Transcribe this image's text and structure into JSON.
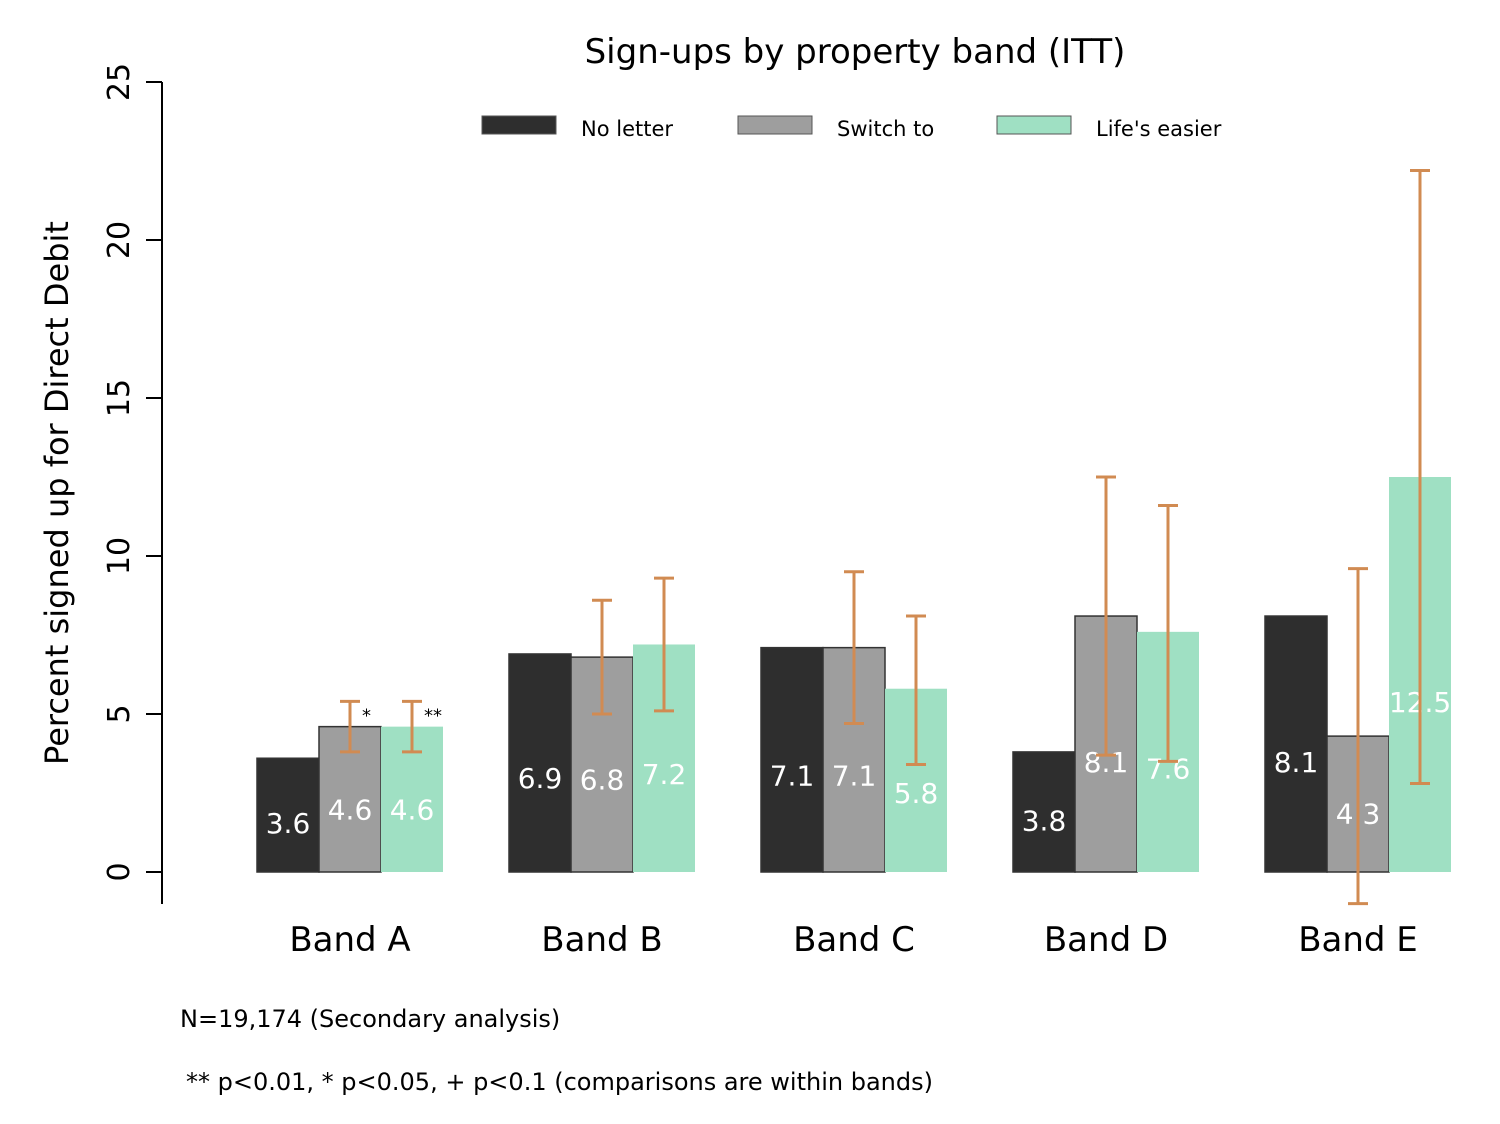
{
  "chart_data": {
    "type": "bar",
    "title": "Sign-ups by property band (ITT)",
    "ylabel": "Percent signed up for Direct Debit",
    "xlabel": "",
    "ylim": [
      0,
      25
    ],
    "yticks": [
      "0",
      "5",
      "10",
      "15",
      "20",
      "25"
    ],
    "legend_position": "top",
    "categories": [
      "Band A",
      "Band B",
      "Band C",
      "Band D",
      "Band E"
    ],
    "series": [
      {
        "name": "No letter",
        "color": "#2e2e2e",
        "values": [
          3.6,
          6.9,
          7.1,
          3.8,
          8.1
        ],
        "labels": [
          "3.6",
          "6.9",
          "7.1",
          "3.8",
          "8.1"
        ],
        "error_low": [
          null,
          null,
          null,
          null,
          null
        ],
        "error_high": [
          null,
          null,
          null,
          null,
          null
        ],
        "significance": [
          "",
          "",
          "",
          "",
          ""
        ]
      },
      {
        "name": "Switch to",
        "color": "#9e9e9e",
        "values": [
          4.6,
          6.8,
          7.1,
          8.1,
          4.3
        ],
        "labels": [
          "4.6",
          "6.8",
          "7.1",
          "8.1",
          "4.3"
        ],
        "error_low": [
          3.8,
          5.0,
          4.7,
          3.7,
          -1.0
        ],
        "error_high": [
          5.4,
          8.6,
          9.5,
          12.5,
          9.6
        ],
        "significance": [
          "*",
          "",
          "",
          "",
          ""
        ]
      },
      {
        "name": "Life's easier",
        "color": "#9fe0c3",
        "values": [
          4.6,
          7.2,
          5.8,
          7.6,
          12.5
        ],
        "labels": [
          "4.6",
          "7.2",
          "5.8",
          "7.6",
          "12.5"
        ],
        "error_low": [
          3.8,
          5.1,
          3.4,
          3.5,
          2.8
        ],
        "error_high": [
          5.4,
          9.3,
          8.1,
          11.6,
          22.2
        ],
        "significance": [
          "**",
          "",
          "",
          "",
          ""
        ]
      }
    ],
    "error_bar_color": "#d18b52",
    "notes": [
      "N=19,174 (Secondary analysis)",
      "** p<0.01, * p<0.05, + p<0.1 (comparisons are within bands)"
    ]
  }
}
